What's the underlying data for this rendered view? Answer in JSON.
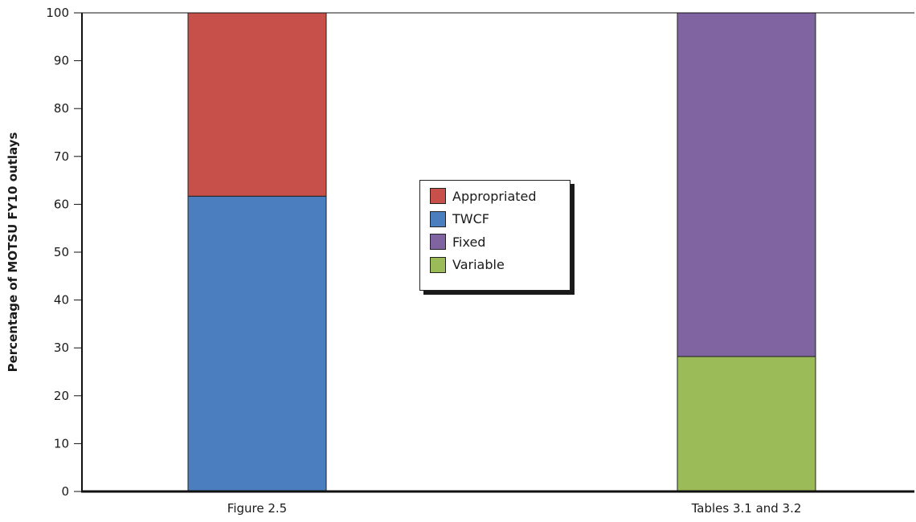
{
  "chart_data": {
    "type": "bar",
    "stacked": true,
    "categories": [
      "Figure 2.5",
      "Tables 3.1 and 3.2"
    ],
    "ylabel": "Percentage of MOTSU FY10 outlays",
    "xlabel": "",
    "ylim": [
      0,
      100
    ],
    "yticks": [
      0,
      10,
      20,
      30,
      40,
      50,
      60,
      70,
      80,
      90,
      100
    ],
    "grid": false,
    "legend_position": "center",
    "series": [
      {
        "name": "TWCF",
        "color": "#4a7ebf",
        "values": [
          61.7,
          0
        ]
      },
      {
        "name": "Appropriated",
        "color": "#c8504b",
        "values": [
          38.3,
          0
        ]
      },
      {
        "name": "Variable",
        "color": "#9bbb59",
        "values": [
          0,
          28.2
        ]
      },
      {
        "name": "Fixed",
        "color": "#8064a2",
        "values": [
          0,
          71.8
        ]
      }
    ],
    "legend": [
      {
        "label": "Appropriated",
        "color": "#c8504b"
      },
      {
        "label": "TWCF",
        "color": "#4a7ebf"
      },
      {
        "label": "Fixed",
        "color": "#8064a2"
      },
      {
        "label": "Variable",
        "color": "#9bbb59"
      }
    ]
  }
}
